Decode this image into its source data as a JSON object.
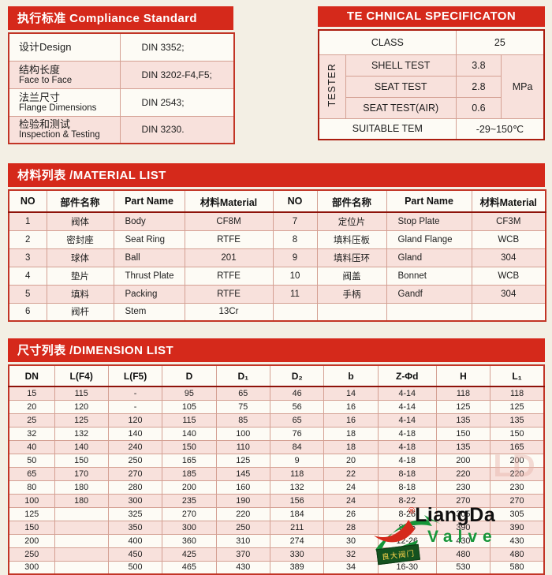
{
  "compliance": {
    "title": "执行标准 Compliance Standard",
    "rows": [
      {
        "l1": "设计Design",
        "l2": "",
        "value": "DIN 3352;"
      },
      {
        "l1": "结构长度",
        "l2": "Face to Face",
        "value": "DIN 3202-F4,F5;"
      },
      {
        "l1": "法兰尺寸",
        "l2": "Flange Dimensions",
        "value": "DIN 2543;"
      },
      {
        "l1": "检验和测试",
        "l2": "Inspection & Testing",
        "value": "DIN 3230."
      }
    ]
  },
  "spec": {
    "title": "TE CHNICAL SPECIFICATON",
    "class_label": "CLASS",
    "class_value": "25",
    "tester_label": "TESTER",
    "tests": [
      {
        "label": "SHELL TEST",
        "value": "3.8"
      },
      {
        "label": "SEAT TEST",
        "value": "2.8"
      },
      {
        "label": "SEAT TEST(AIR)",
        "value": "0.6"
      }
    ],
    "unit": "MPa",
    "suitable_label": "SUITABLE TEM",
    "suitable_value": "-29~150℃"
  },
  "material": {
    "title": "材料列表 /MATERIAL LIST",
    "headers": [
      "NO",
      "部件名称",
      "Part Name",
      "材料Material",
      "NO",
      "部件名称",
      "Part Name",
      "材料Material"
    ],
    "rows": [
      [
        "1",
        "阀体",
        "Body",
        "CF8M",
        "7",
        "定位片",
        "Stop Plate",
        "CF3M"
      ],
      [
        "2",
        "密封座",
        "Seat Ring",
        "RTFE",
        "8",
        "填料压板",
        "Gland Flange",
        "WCB"
      ],
      [
        "3",
        "球体",
        "Ball",
        "201",
        "9",
        "填料压环",
        "Gland",
        "304"
      ],
      [
        "4",
        "垫片",
        "Thrust Plate",
        "RTFE",
        "10",
        "阀盖",
        "Bonnet",
        "WCB"
      ],
      [
        "5",
        "填料",
        "Packing",
        "RTFE",
        "11",
        "手柄",
        "Gandf",
        "304"
      ],
      [
        "6",
        "阀杆",
        "Stem",
        "13Cr",
        "",
        "",
        "",
        ""
      ]
    ]
  },
  "dimension": {
    "title": "尺寸列表 /DIMENSION LIST",
    "headers": [
      "DN",
      "L(F4)",
      "L(F5)",
      "D",
      "D₁",
      "D₂",
      "b",
      "Z-Φd",
      "H",
      "L₁"
    ],
    "rows": [
      [
        "15",
        "115",
        "-",
        "95",
        "65",
        "46",
        "14",
        "4-14",
        "118",
        "118"
      ],
      [
        "20",
        "120",
        "-",
        "105",
        "75",
        "56",
        "16",
        "4-14",
        "125",
        "125"
      ],
      [
        "25",
        "125",
        "120",
        "115",
        "85",
        "65",
        "16",
        "4-14",
        "135",
        "135"
      ],
      [
        "32",
        "132",
        "140",
        "140",
        "100",
        "76",
        "18",
        "4-18",
        "150",
        "150"
      ],
      [
        "40",
        "140",
        "240",
        "150",
        "110",
        "84",
        "18",
        "4-18",
        "135",
        "165"
      ],
      [
        "50",
        "150",
        "250",
        "165",
        "125",
        "9",
        "20",
        "4-18",
        "200",
        "200"
      ],
      [
        "65",
        "170",
        "270",
        "185",
        "145",
        "118",
        "22",
        "8-18",
        "220",
        "220"
      ],
      [
        "80",
        "180",
        "280",
        "200",
        "160",
        "132",
        "24",
        "8-18",
        "230",
        "230"
      ],
      [
        "100",
        "180",
        "300",
        "235",
        "190",
        "156",
        "24",
        "8-22",
        "270",
        "270"
      ],
      [
        "125",
        "",
        "325",
        "270",
        "220",
        "184",
        "26",
        "8-26",
        "305",
        "305"
      ],
      [
        "150",
        "",
        "350",
        "300",
        "250",
        "211",
        "28",
        "8-26",
        "390",
        "390"
      ],
      [
        "200",
        "",
        "400",
        "360",
        "310",
        "274",
        "30",
        "12-26",
        "430",
        "430"
      ],
      [
        "250",
        "",
        "450",
        "425",
        "370",
        "330",
        "32",
        "12-30",
        "480",
        "480"
      ],
      [
        "300",
        "",
        "500",
        "465",
        "430",
        "389",
        "34",
        "16-30",
        "530",
        "580"
      ]
    ]
  },
  "logo": {
    "registered": "®",
    "brand": "LiangDa",
    "sub": "Valve",
    "box": "良大阀门"
  },
  "colors": {
    "accent_red": "#d5291b",
    "stripe_pink": "#f8e1dc",
    "logo_green": "#169539",
    "background": "#f3efe4"
  }
}
